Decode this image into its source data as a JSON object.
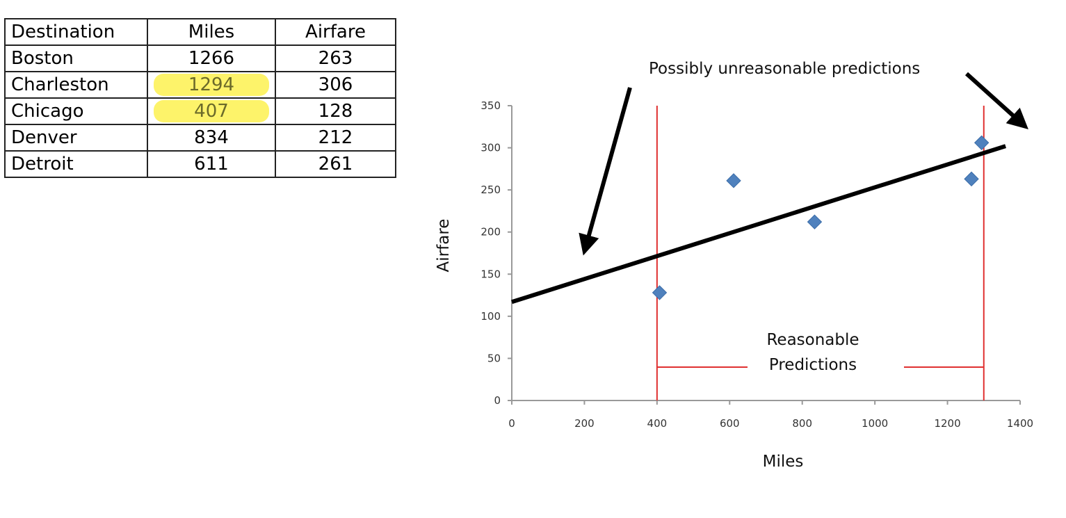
{
  "table": {
    "headers": [
      "Destination",
      "Miles",
      "Airfare"
    ],
    "rows": [
      {
        "destination": "Boston",
        "miles": "1266",
        "airfare": "263",
        "highlight": false
      },
      {
        "destination": "Charleston",
        "miles": "1294",
        "airfare": "306",
        "highlight": true
      },
      {
        "destination": "Chicago",
        "miles": "407",
        "airfare": "128",
        "highlight": true
      },
      {
        "destination": "Denver",
        "miles": "834",
        "airfare": "212",
        "highlight": false
      },
      {
        "destination": "Detroit",
        "miles": "611",
        "airfare": "261",
        "highlight": false
      }
    ],
    "highlight_color": "#fdf36a"
  },
  "chart_data": {
    "type": "scatter",
    "title": "",
    "xlabel": "Miles",
    "ylabel": "Airfare",
    "xlim": [
      0,
      1400
    ],
    "ylim": [
      0,
      350
    ],
    "xticks": [
      0,
      200,
      400,
      600,
      800,
      1000,
      1200,
      1400
    ],
    "yticks": [
      0,
      50,
      100,
      150,
      200,
      250,
      300,
      350
    ],
    "grid": false,
    "points": [
      {
        "x": 1266,
        "y": 263
      },
      {
        "x": 1294,
        "y": 306
      },
      {
        "x": 407,
        "y": 128
      },
      {
        "x": 834,
        "y": 212
      },
      {
        "x": 611,
        "y": 261
      }
    ],
    "point_color": "#4f81bd",
    "regression_line": {
      "x_start": 0,
      "y_start": 117,
      "x_end": 1360,
      "y_end": 302,
      "color": "#000000"
    },
    "range_lines": {
      "x_min": 400,
      "x_max": 1300,
      "color": "#e03030"
    },
    "annotations": {
      "unreasonable": "Possibly unreasonable predictions",
      "reasonable_line1": "Reasonable",
      "reasonable_line2": "Predictions"
    }
  }
}
